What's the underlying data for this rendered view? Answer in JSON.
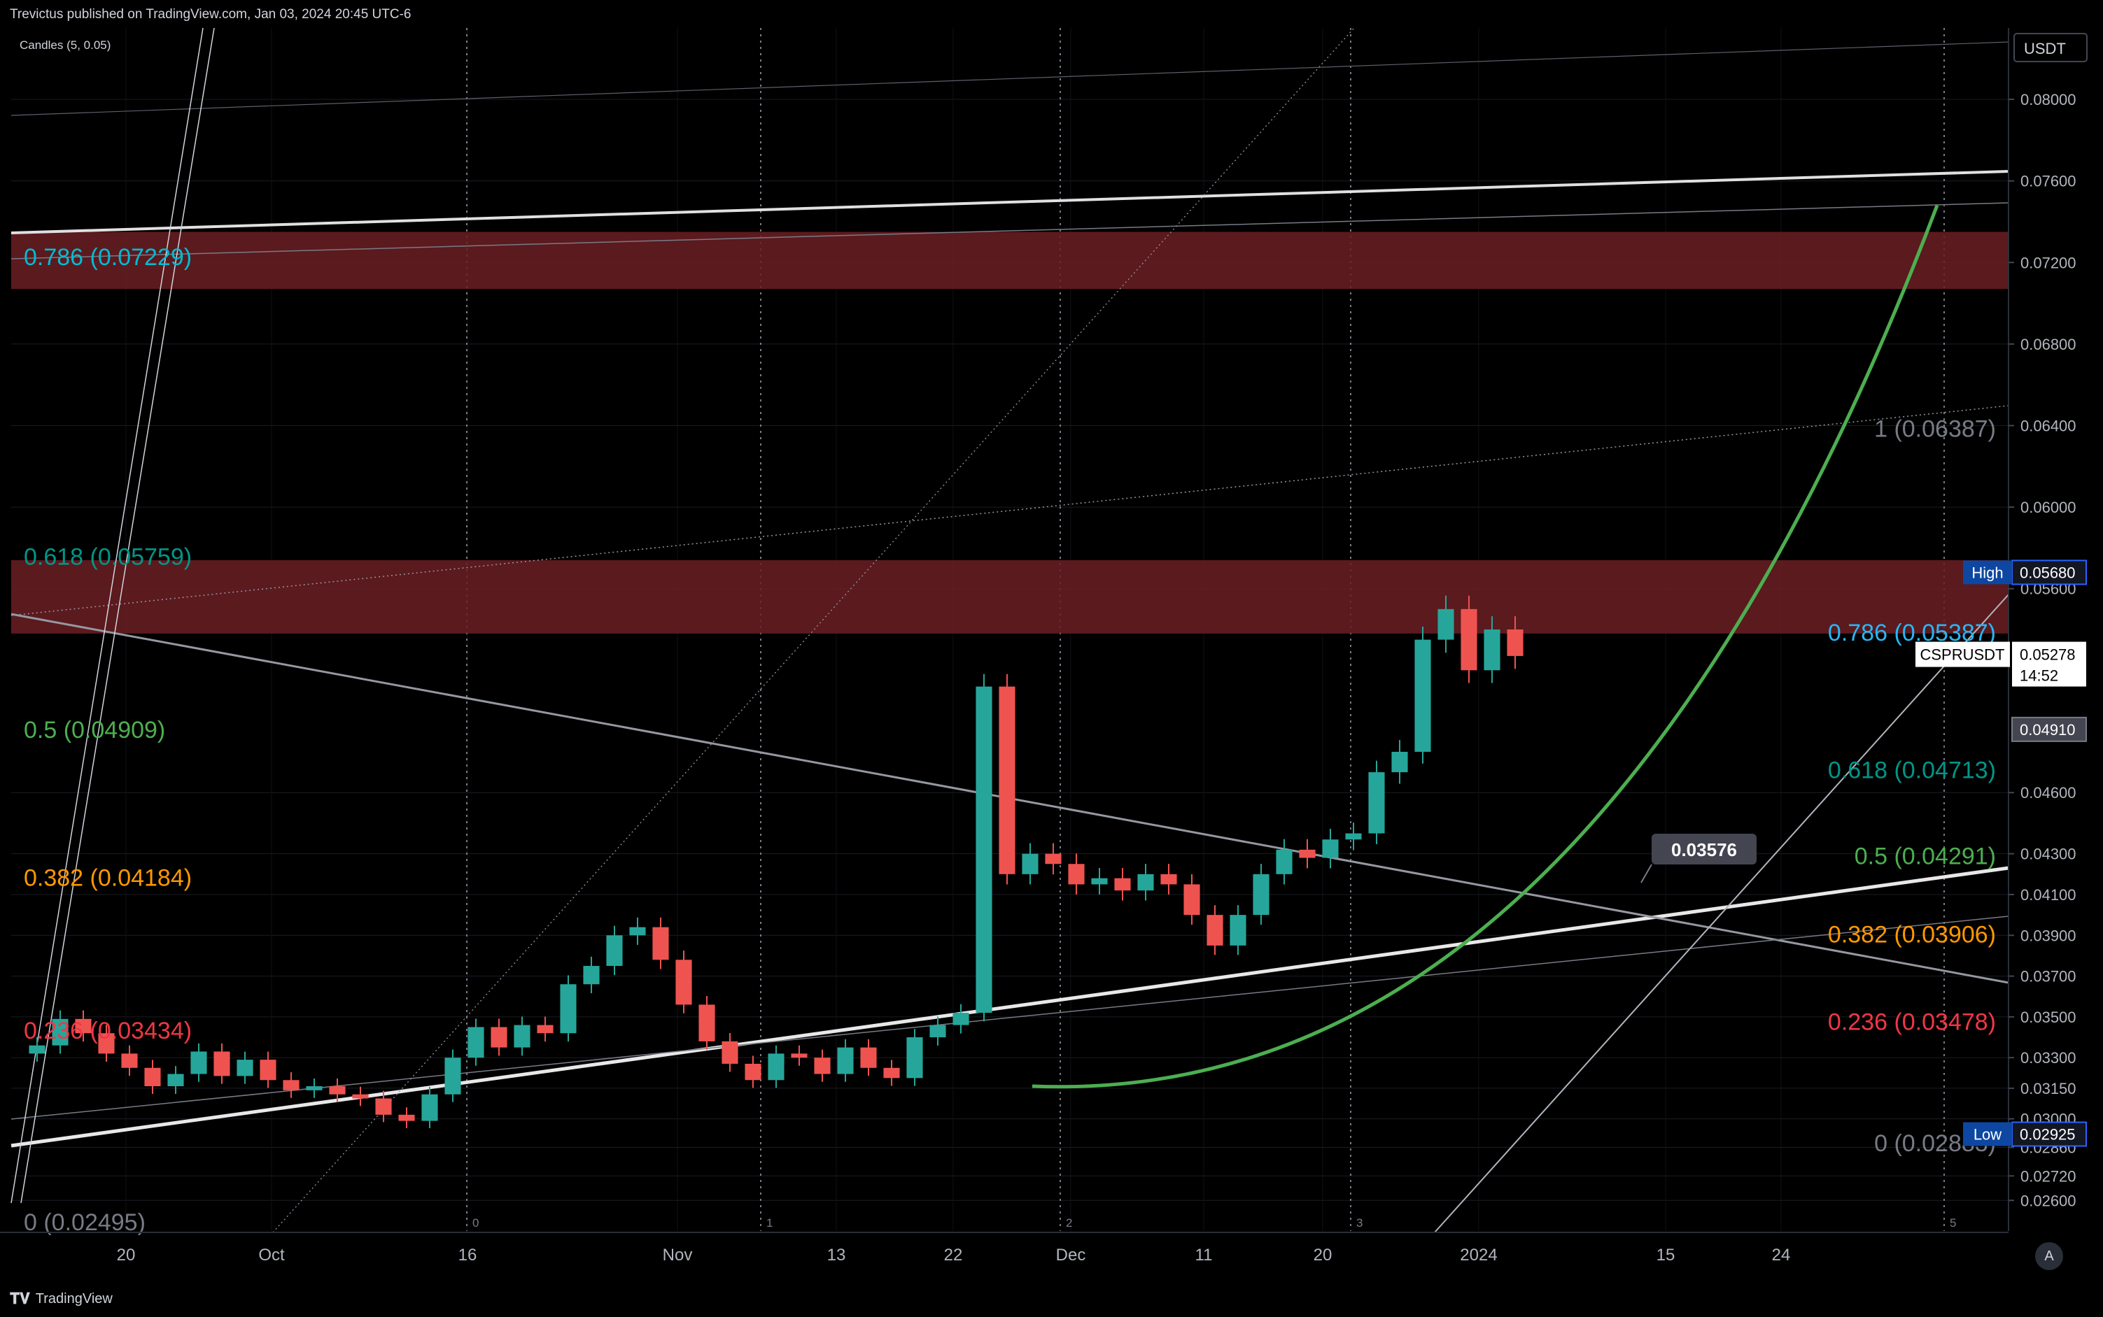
{
  "header": {
    "publisher": "Trevictus published on TradingView.com, Jan 03, 2024 20:45 UTC-6",
    "indicator": "Candles (5, 0.05)"
  },
  "footer": {
    "brand": "TradingView",
    "logo_icon": "tradingview-logo-icon"
  },
  "axis_button": "A",
  "chart_data": {
    "type": "candlestick",
    "symbol": "CSPRUSDT",
    "currency": "USDT",
    "price": "0.05278",
    "countdown": "14:52",
    "colors": {
      "background": "#000000",
      "up": "#26a69a",
      "down": "#ef5350",
      "zone": "#6b1f23",
      "parabola": "#4caf50"
    },
    "y_ticks": [
      "0.08000",
      "0.07600",
      "0.07200",
      "0.06800",
      "0.06400",
      "0.06000",
      "0.05600",
      "0.04600",
      "0.04300",
      "0.04100",
      "0.03900",
      "0.03700",
      "0.03500",
      "0.03300",
      "0.03150",
      "0.03000",
      "0.02860",
      "0.02720",
      "0.02600"
    ],
    "x_ticks": [
      "20",
      "Oct",
      "16",
      "Nov",
      "13",
      "22",
      "Dec",
      "11",
      "20",
      "2024",
      "15",
      "24"
    ],
    "ylim": [
      0.0245,
      0.0835
    ],
    "axis_badges": [
      {
        "label": "High",
        "value": "0.05680",
        "color": "#131722",
        "border": "#2962ff"
      },
      {
        "label": "",
        "value": "0.04910",
        "color": "#434651",
        "border": "#787b86"
      },
      {
        "label": "Low",
        "value": "0.02925",
        "color": "#131722",
        "border": "#2962ff"
      }
    ],
    "callout": "0.03576",
    "fib_left": [
      {
        "ratio": "0.786",
        "value": "0.07229",
        "color": "#00bcd4"
      },
      {
        "ratio": "0.618",
        "value": "0.05759",
        "color": "#009688"
      },
      {
        "ratio": "0.5",
        "value": "0.04909",
        "color": "#4caf50"
      },
      {
        "ratio": "0.382",
        "value": "0.04184",
        "color": "#ff9800"
      },
      {
        "ratio": "0.236",
        "value": "0.03434",
        "color": "#f23645"
      },
      {
        "ratio": "0",
        "value": "0.02495",
        "color": "#787b86"
      }
    ],
    "fib_right": [
      {
        "ratio": "1",
        "value": "0.06387",
        "color": "#787b86"
      },
      {
        "ratio": "0.786",
        "value": "0.05387",
        "color": "#29b6f6"
      },
      {
        "ratio": "0.618",
        "value": "0.04713",
        "color": "#009688"
      },
      {
        "ratio": "0.5",
        "value": "0.04291",
        "color": "#4caf50"
      },
      {
        "ratio": "0.382",
        "value": "0.03906",
        "color": "#ff9800"
      },
      {
        "ratio": "0.236",
        "value": "0.03478",
        "color": "#f23645"
      },
      {
        "ratio": "0",
        "value": "0.02883",
        "color": "#787b86"
      }
    ],
    "cycle_markers": [
      "0",
      "1",
      "2",
      "3",
      "5"
    ],
    "price_path": [
      0.0332,
      0.0336,
      0.0349,
      0.0342,
      0.0332,
      0.0325,
      0.0316,
      0.0322,
      0.0333,
      0.0321,
      0.0329,
      0.0319,
      0.0314,
      0.0316,
      0.0312,
      0.031,
      0.0302,
      0.0299,
      0.0312,
      0.033,
      0.0345,
      0.0335,
      0.0346,
      0.0342,
      0.0366,
      0.0375,
      0.039,
      0.0394,
      0.0378,
      0.0356,
      0.0338,
      0.0327,
      0.0319,
      0.0332,
      0.033,
      0.0322,
      0.0335,
      0.0325,
      0.032,
      0.034,
      0.0346,
      0.0352,
      0.0512,
      0.042,
      0.043,
      0.0425,
      0.0415,
      0.0418,
      0.0412,
      0.042,
      0.0415,
      0.04,
      0.0385,
      0.04,
      0.042,
      0.0432,
      0.0428,
      0.0437,
      0.044,
      0.047,
      0.048,
      0.0535,
      0.055,
      0.052,
      0.054,
      0.0527
    ]
  }
}
